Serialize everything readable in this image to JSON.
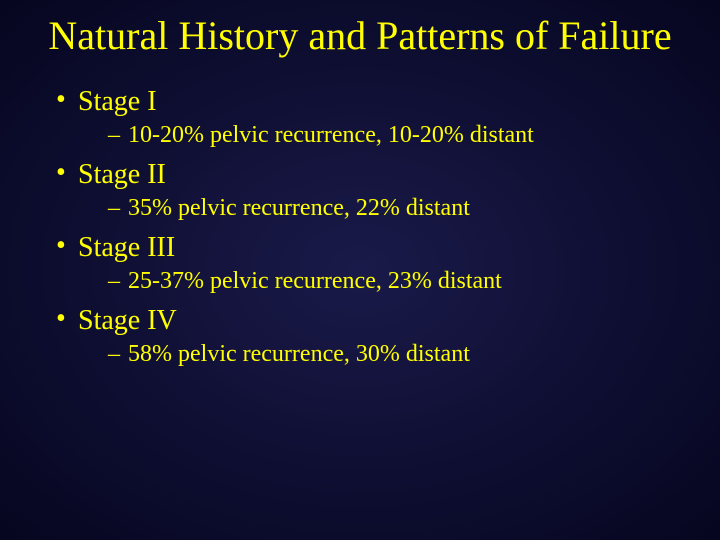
{
  "colors": {
    "text": "#ffff00",
    "bg_center": "#1a1a4a",
    "bg_edge": "#060620"
  },
  "title": "Natural History and Patterns of Failure",
  "bullets": [
    {
      "label": "Stage I",
      "sub": "10-20% pelvic recurrence, 10-20% distant"
    },
    {
      "label": "Stage II",
      "sub": "35% pelvic recurrence, 22% distant"
    },
    {
      "label": "Stage III",
      "sub": "25-37% pelvic recurrence, 23% distant"
    },
    {
      "label": "Stage IV",
      "sub": "58% pelvic recurrence, 30% distant"
    }
  ]
}
